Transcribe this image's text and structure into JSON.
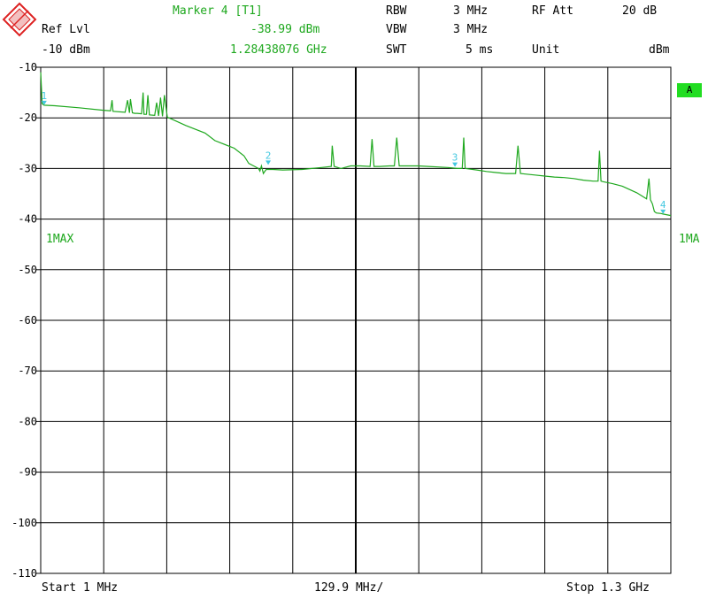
{
  "header": {
    "ref_lvl_label": "Ref Lvl",
    "ref_lvl_value": "-10 dBm",
    "marker_title": "Marker 4 [T1]",
    "marker_level": "-38.99 dBm",
    "marker_freq": "1.28438076 GHz",
    "rbw_label": "RBW",
    "rbw_value": "3 MHz",
    "vbw_label": "VBW",
    "vbw_value": "3 MHz",
    "swt_label": "SWT",
    "swt_value": "5 ms",
    "rf_att_label": "RF Att",
    "rf_att_value": "20 dB",
    "unit_label": "Unit",
    "unit_value": "dBm"
  },
  "side": {
    "trace_label_left": "1MAX",
    "trace_label_right": "1MA",
    "badge": "A"
  },
  "footer": {
    "start": "Start 1 MHz",
    "span": "129.9 MHz/",
    "stop": "Stop 1.3 GHz"
  },
  "colors": {
    "trace": "#1ea81e",
    "marker": "#44c8e0",
    "grid": "#000000",
    "badge": "#22dd22"
  },
  "chart_data": {
    "type": "line",
    "title": "",
    "xlabel": "",
    "ylabel": "",
    "xlim": [
      1,
      1300
    ],
    "ylim": [
      -110,
      -10
    ],
    "yticks": [
      -10,
      -20,
      -30,
      -40,
      -50,
      -60,
      -70,
      -80,
      -90,
      -100,
      -110
    ],
    "x_divisions": 10,
    "grid": true,
    "series": [
      {
        "x": [
          1,
          4,
          8,
          30,
          80,
          130,
          145,
          148,
          150,
          175,
          180,
          184,
          186,
          190,
          195,
          200,
          209,
          212,
          214,
          219,
          222,
          225,
          236,
          240,
          244,
          248,
          252,
          256,
          262,
          270,
          300,
          340,
          360,
          400,
          420,
          430,
          440,
          450,
          453,
          456,
          460,
          462,
          466,
          480,
          500,
          540,
          560,
          580,
          600,
          602,
          606,
          620,
          640,
          660,
          680,
          684,
          688,
          700,
          720,
          730,
          735,
          740,
          760,
          780,
          800,
          820,
          840,
          860,
          870,
          873,
          876,
          900,
          920,
          940,
          960,
          980,
          985,
          990,
          1000,
          1020,
          1040,
          1060,
          1080,
          1100,
          1120,
          1140,
          1150,
          1153,
          1156,
          1160,
          1180,
          1200,
          1230,
          1250,
          1255,
          1258,
          1262,
          1266,
          1270,
          1280,
          1284,
          1300
        ],
        "y": [
          -11,
          -17.2,
          -17.5,
          -17.6,
          -18.0,
          -18.5,
          -18.6,
          -16.5,
          -18.7,
          -18.9,
          -16.5,
          -19.0,
          -16.3,
          -19.0,
          -19.1,
          -19.1,
          -19.2,
          -15.0,
          -19.3,
          -19.3,
          -15.5,
          -19.4,
          -19.5,
          -17.0,
          -19.6,
          -16.0,
          -19.7,
          -15.5,
          -19.9,
          -20.2,
          -21.5,
          -23.0,
          -24.5,
          -26.0,
          -27.5,
          -29.0,
          -29.5,
          -30.0,
          -30.5,
          -29.5,
          -31.0,
          -30.7,
          -30.2,
          -30.2,
          -30.3,
          -30.2,
          -30.0,
          -29.8,
          -29.6,
          -25.5,
          -29.6,
          -30.0,
          -29.5,
          -29.5,
          -29.6,
          -24.2,
          -29.6,
          -29.6,
          -29.5,
          -29.5,
          -23.9,
          -29.5,
          -29.5,
          -29.5,
          -29.6,
          -29.7,
          -29.8,
          -30.0,
          -30.0,
          -23.9,
          -30.0,
          -30.3,
          -30.6,
          -30.8,
          -31.0,
          -31.0,
          -25.5,
          -31.0,
          -31.1,
          -31.3,
          -31.5,
          -31.7,
          -31.8,
          -32.0,
          -32.3,
          -32.5,
          -32.5,
          -26.5,
          -32.5,
          -32.6,
          -33.0,
          -33.5,
          -34.8,
          -36.0,
          -32.0,
          -36.2,
          -37.0,
          -38.5,
          -38.8,
          -38.9,
          -39.0,
          -39.3
        ]
      }
    ],
    "markers": [
      {
        "label": "1",
        "x": 8,
        "y": -17.5
      },
      {
        "label": "2",
        "x": 470,
        "y": -29.3
      },
      {
        "label": "3",
        "x": 855,
        "y": -29.7
      },
      {
        "label": "4",
        "x": 1284,
        "y": -38.99
      }
    ]
  }
}
